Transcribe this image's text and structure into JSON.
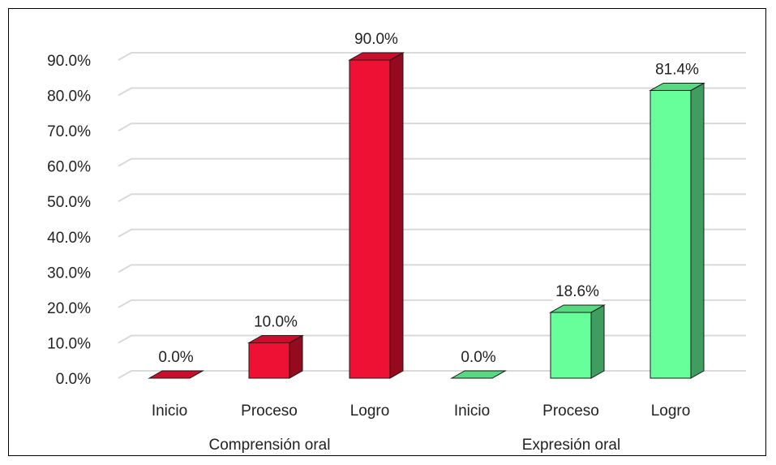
{
  "chart_data": {
    "type": "bar",
    "title": "",
    "xlabel": "",
    "ylabel": "",
    "ylim": [
      0,
      90
    ],
    "yticks": [
      0,
      10,
      20,
      30,
      40,
      50,
      60,
      70,
      80,
      90
    ],
    "y_tick_labels": [
      "0.0%",
      "10.0%",
      "20.0%",
      "30.0%",
      "40.0%",
      "50.0%",
      "60.0%",
      "70.0%",
      "80.0%",
      "90.0%"
    ],
    "grid": true,
    "legend": "none",
    "style": "3d-column",
    "groups": [
      {
        "label": "Comprensión oral",
        "color": "#ee1133",
        "categories": [
          "Inicio",
          "Proceso",
          "Logro"
        ],
        "values": [
          0.0,
          10.0,
          90.0
        ],
        "data_labels": [
          "0.0%",
          "10.0%",
          "90.0%"
        ]
      },
      {
        "label": "Expresión oral",
        "color": "#66ff99",
        "categories": [
          "Inicio",
          "Proceso",
          "Logro"
        ],
        "values": [
          0.0,
          18.6,
          81.4
        ],
        "data_labels": [
          "0.0%",
          "18.6%",
          "81.4%"
        ]
      }
    ]
  }
}
